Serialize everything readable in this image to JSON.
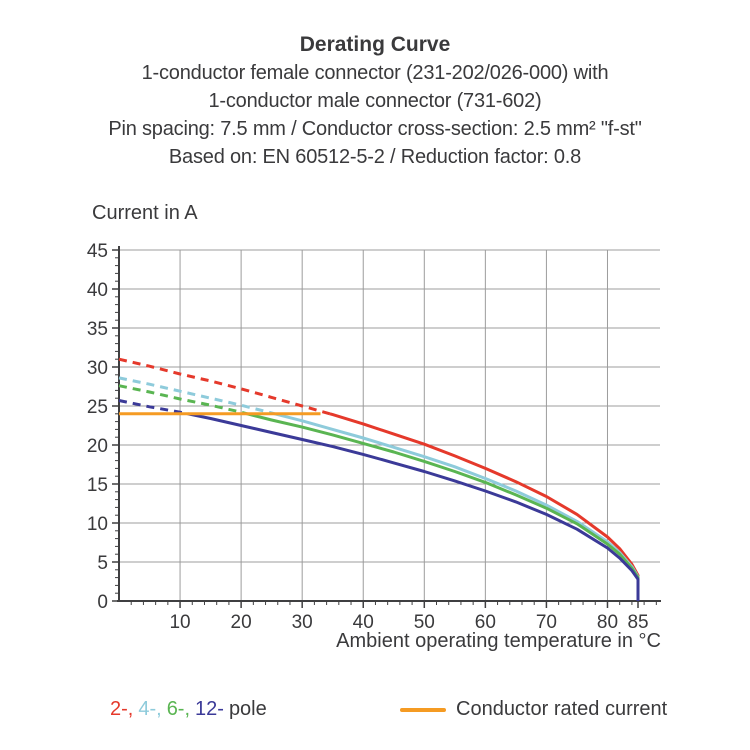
{
  "header": {
    "title": "Derating Curve",
    "subtitle_lines": [
      "1-conductor female connector (231-202/026-000) with",
      "1-conductor male connector (731-602)",
      "Pin spacing: 7.5 mm / Conductor cross-section: 2.5 mm² \"f-st\"",
      "Based on: EN 60512-5-2 / Reduction factor: 0.8"
    ]
  },
  "chart_data": {
    "type": "line",
    "title": "Derating Curve",
    "ylabel": "Current in A",
    "xlabel": "Ambient operating temperature in °C",
    "xlim": [
      0,
      88
    ],
    "ylim": [
      0,
      45
    ],
    "x_ticks": [
      10,
      20,
      30,
      40,
      50,
      60,
      70,
      80,
      85
    ],
    "x_grid_ticks": [
      10,
      20,
      30,
      40,
      50,
      60,
      70,
      80
    ],
    "y_ticks": [
      0,
      5,
      10,
      15,
      20,
      25,
      30,
      35,
      40,
      45
    ],
    "x_minor_step": 2,
    "y_minor_step": 1,
    "grid": true,
    "grid_color": "#9c9c9c",
    "axis_color": "#3f3f41",
    "text_color": "#3a3a3c",
    "rated_current": {
      "label": "Conductor rated current",
      "value": 24,
      "x_start": 0,
      "x_end": 33,
      "color": "#f59b23"
    },
    "dash_above_rated": true,
    "x": [
      0,
      5,
      10,
      15,
      20,
      25,
      30,
      35,
      40,
      45,
      50,
      55,
      60,
      65,
      70,
      75,
      80,
      82,
      84,
      85,
      85
    ],
    "series": [
      {
        "name": "2-pole",
        "color": "#e5392b",
        "values": [
          31.0,
          30.1,
          29.1,
          28.2,
          27.2,
          26.1,
          25.0,
          23.9,
          22.7,
          21.4,
          20.1,
          18.6,
          17.0,
          15.3,
          13.4,
          11.1,
          8.2,
          6.7,
          4.7,
          3.3,
          0
        ]
      },
      {
        "name": "4-pole",
        "color": "#8ecbdb",
        "values": [
          28.6,
          27.8,
          26.9,
          26.0,
          25.1,
          24.1,
          23.1,
          22.0,
          20.9,
          19.7,
          18.5,
          17.2,
          15.7,
          14.1,
          12.3,
          10.2,
          7.6,
          6.2,
          4.4,
          3.1,
          0
        ]
      },
      {
        "name": "6-pole",
        "color": "#5ab552",
        "values": [
          27.6,
          26.8,
          25.9,
          25.1,
          24.2,
          23.2,
          22.3,
          21.3,
          20.2,
          19.1,
          17.9,
          16.6,
          15.2,
          13.6,
          11.9,
          9.9,
          7.3,
          6.0,
          4.2,
          3.0,
          0
        ]
      },
      {
        "name": "12-pole",
        "color": "#3b3a98",
        "values": [
          25.7,
          24.9,
          24.2,
          23.4,
          22.5,
          21.6,
          20.7,
          19.8,
          18.8,
          17.7,
          16.6,
          15.4,
          14.1,
          12.7,
          11.1,
          9.2,
          6.8,
          5.5,
          3.9,
          2.8,
          0
        ]
      }
    ]
  },
  "legend": {
    "poles": [
      {
        "label": "2-,",
        "color": "#e5392b"
      },
      {
        "label": "4-,",
        "color": "#8ecbdb"
      },
      {
        "label": "6-,",
        "color": "#5ab552"
      },
      {
        "label": "12-",
        "color": "#3b3a98"
      }
    ],
    "suffix": "pole",
    "rated_label": "Conductor rated current",
    "rated_color": "#f59b23"
  }
}
